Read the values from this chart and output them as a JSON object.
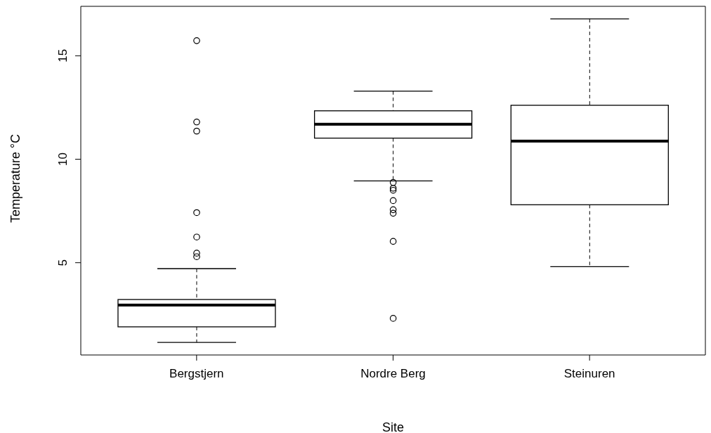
{
  "chart_data": {
    "type": "box",
    "xlabel": "Site",
    "ylabel": "Temperature °C",
    "categories": [
      "Bergstjern",
      "Nordre Berg",
      "Steinuren"
    ],
    "boxes": [
      {
        "low": 1.15,
        "q1": 1.9,
        "median": 2.95,
        "q3": 3.22,
        "high": 4.71,
        "outliers": [
          15.73,
          11.8,
          11.36,
          7.42,
          6.24,
          5.46,
          5.29
        ]
      },
      {
        "low": 8.95,
        "q1": 11.02,
        "median": 11.69,
        "q3": 12.34,
        "high": 13.29,
        "outliers": [
          8.88,
          8.6,
          8.5,
          8.0,
          7.56,
          7.39,
          6.03,
          2.31
        ]
      },
      {
        "low": 4.81,
        "q1": 7.8,
        "median": 10.88,
        "q3": 12.61,
        "high": 16.78
      }
    ],
    "ylim": [
      0.54,
      17.39
    ],
    "yticks": [
      5,
      10,
      15
    ]
  }
}
